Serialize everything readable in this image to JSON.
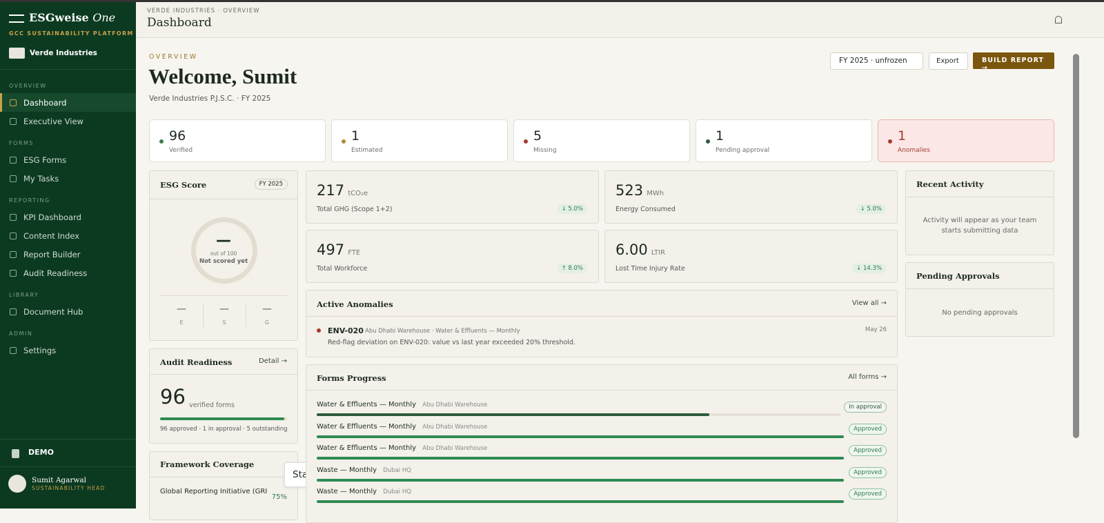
{
  "sidebar": {
    "brand": "ESGweise",
    "brand_suffix": "One",
    "tagline": "GCC SUSTAINABILITY PLATFORM",
    "org": "Verde Industries",
    "sections": [
      {
        "title": "OVERVIEW",
        "items": [
          "Dashboard",
          "Executive View"
        ]
      },
      {
        "title": "FORMS",
        "items": [
          "ESG Forms",
          "My Tasks"
        ]
      },
      {
        "title": "REPORTING",
        "items": [
          "KPI Dashboard",
          "Content Index",
          "Report Builder",
          "Audit Readiness"
        ]
      },
      {
        "title": "LIBRARY",
        "items": [
          "Document Hub"
        ]
      },
      {
        "title": "ADMIN",
        "items": [
          "Settings"
        ]
      }
    ],
    "mode": "DEMO",
    "user": {
      "name": "Sumit Agarwal",
      "role": "SUSTAINABILITY HEAD"
    }
  },
  "topbar": {
    "breadcrumb": "VERDE INDUSTRIES · OVERVIEW",
    "title": "Dashboard"
  },
  "header": {
    "eyebrow": "OVERVIEW",
    "title": "Welcome, Sumit",
    "subtitle": "Verde Industries P.J.S.C. · FY 2025",
    "period": "FY 2025 · unfrozen",
    "export": "Export",
    "build": "BUILD REPORT →"
  },
  "stats": [
    {
      "value": 96,
      "label": "Verified"
    },
    {
      "value": 1,
      "label": "Estimated"
    },
    {
      "value": 5,
      "label": "Missing"
    },
    {
      "value": 1,
      "label": "Pending approval"
    },
    {
      "value": 1,
      "label": "Anomalies"
    }
  ],
  "esg_score": {
    "title": "ESG Score",
    "badge": "FY 2025",
    "value": "—",
    "caption": "out of 100",
    "status": "Not scored yet",
    "pillars": [
      {
        "value": "—",
        "label": "E"
      },
      {
        "value": "—",
        "label": "S"
      },
      {
        "value": "—",
        "label": "G"
      }
    ]
  },
  "kpis": [
    {
      "value": "217",
      "unit": "tCO₂e",
      "label": "Total GHG (Scope 1+2)",
      "change": "↓ 5.0%"
    },
    {
      "value": "523",
      "unit": "MWh",
      "label": "Energy Consumed",
      "change": "↓ 5.0%"
    },
    {
      "value": "497",
      "unit": "FTE",
      "label": "Total Workforce",
      "change": "↑ 8.0%"
    },
    {
      "value": "6.00",
      "unit": "LTIR",
      "label": "Lost Time Injury Rate",
      "change": "↓ 14.3%"
    }
  ],
  "audit": {
    "title": "Audit Readiness",
    "link": "Detail →",
    "value": 96,
    "unit": "verified forms",
    "progress": 97,
    "summary": "96 approved · 1 in approval · 5 outstanding"
  },
  "framework": {
    "title": "Framework Coverage",
    "items": [
      {
        "name": "Global Reporting Initiative (GRI",
        "value": "75%"
      }
    ]
  },
  "start_button": "Start",
  "anomalies": {
    "title": "Active Anomalies",
    "link": "View all →",
    "items": [
      {
        "code": "ENV-020",
        "meta": "Abu Dhabi Warehouse · Water & Effluents — Monthly",
        "date": "May 26",
        "message": "Red-flag deviation on ENV-020: value vs last year exceeded 20% threshold."
      }
    ]
  },
  "forms": {
    "title": "Forms Progress",
    "link": "All forms →",
    "rows": [
      {
        "name": "Water & Effluents — Monthly",
        "site": "Abu Dhabi Warehouse",
        "status": "In approval",
        "progress": 75
      },
      {
        "name": "Water & Effluents — Monthly",
        "site": "Abu Dhabi Warehouse",
        "status": "Approved",
        "progress": 100
      },
      {
        "name": "Water & Effluents — Monthly",
        "site": "Abu Dhabi Warehouse",
        "status": "Approved",
        "progress": 100
      },
      {
        "name": "Waste — Monthly",
        "site": "Dubai HQ",
        "status": "Approved",
        "progress": 100
      },
      {
        "name": "Waste — Monthly",
        "site": "Dubai HQ",
        "status": "Approved",
        "progress": 100
      }
    ]
  },
  "activity": {
    "title": "Recent Activity",
    "empty": "Activity will appear as your team starts submitting data"
  },
  "approvals": {
    "title": "Pending Approvals",
    "empty": "No pending approvals"
  }
}
